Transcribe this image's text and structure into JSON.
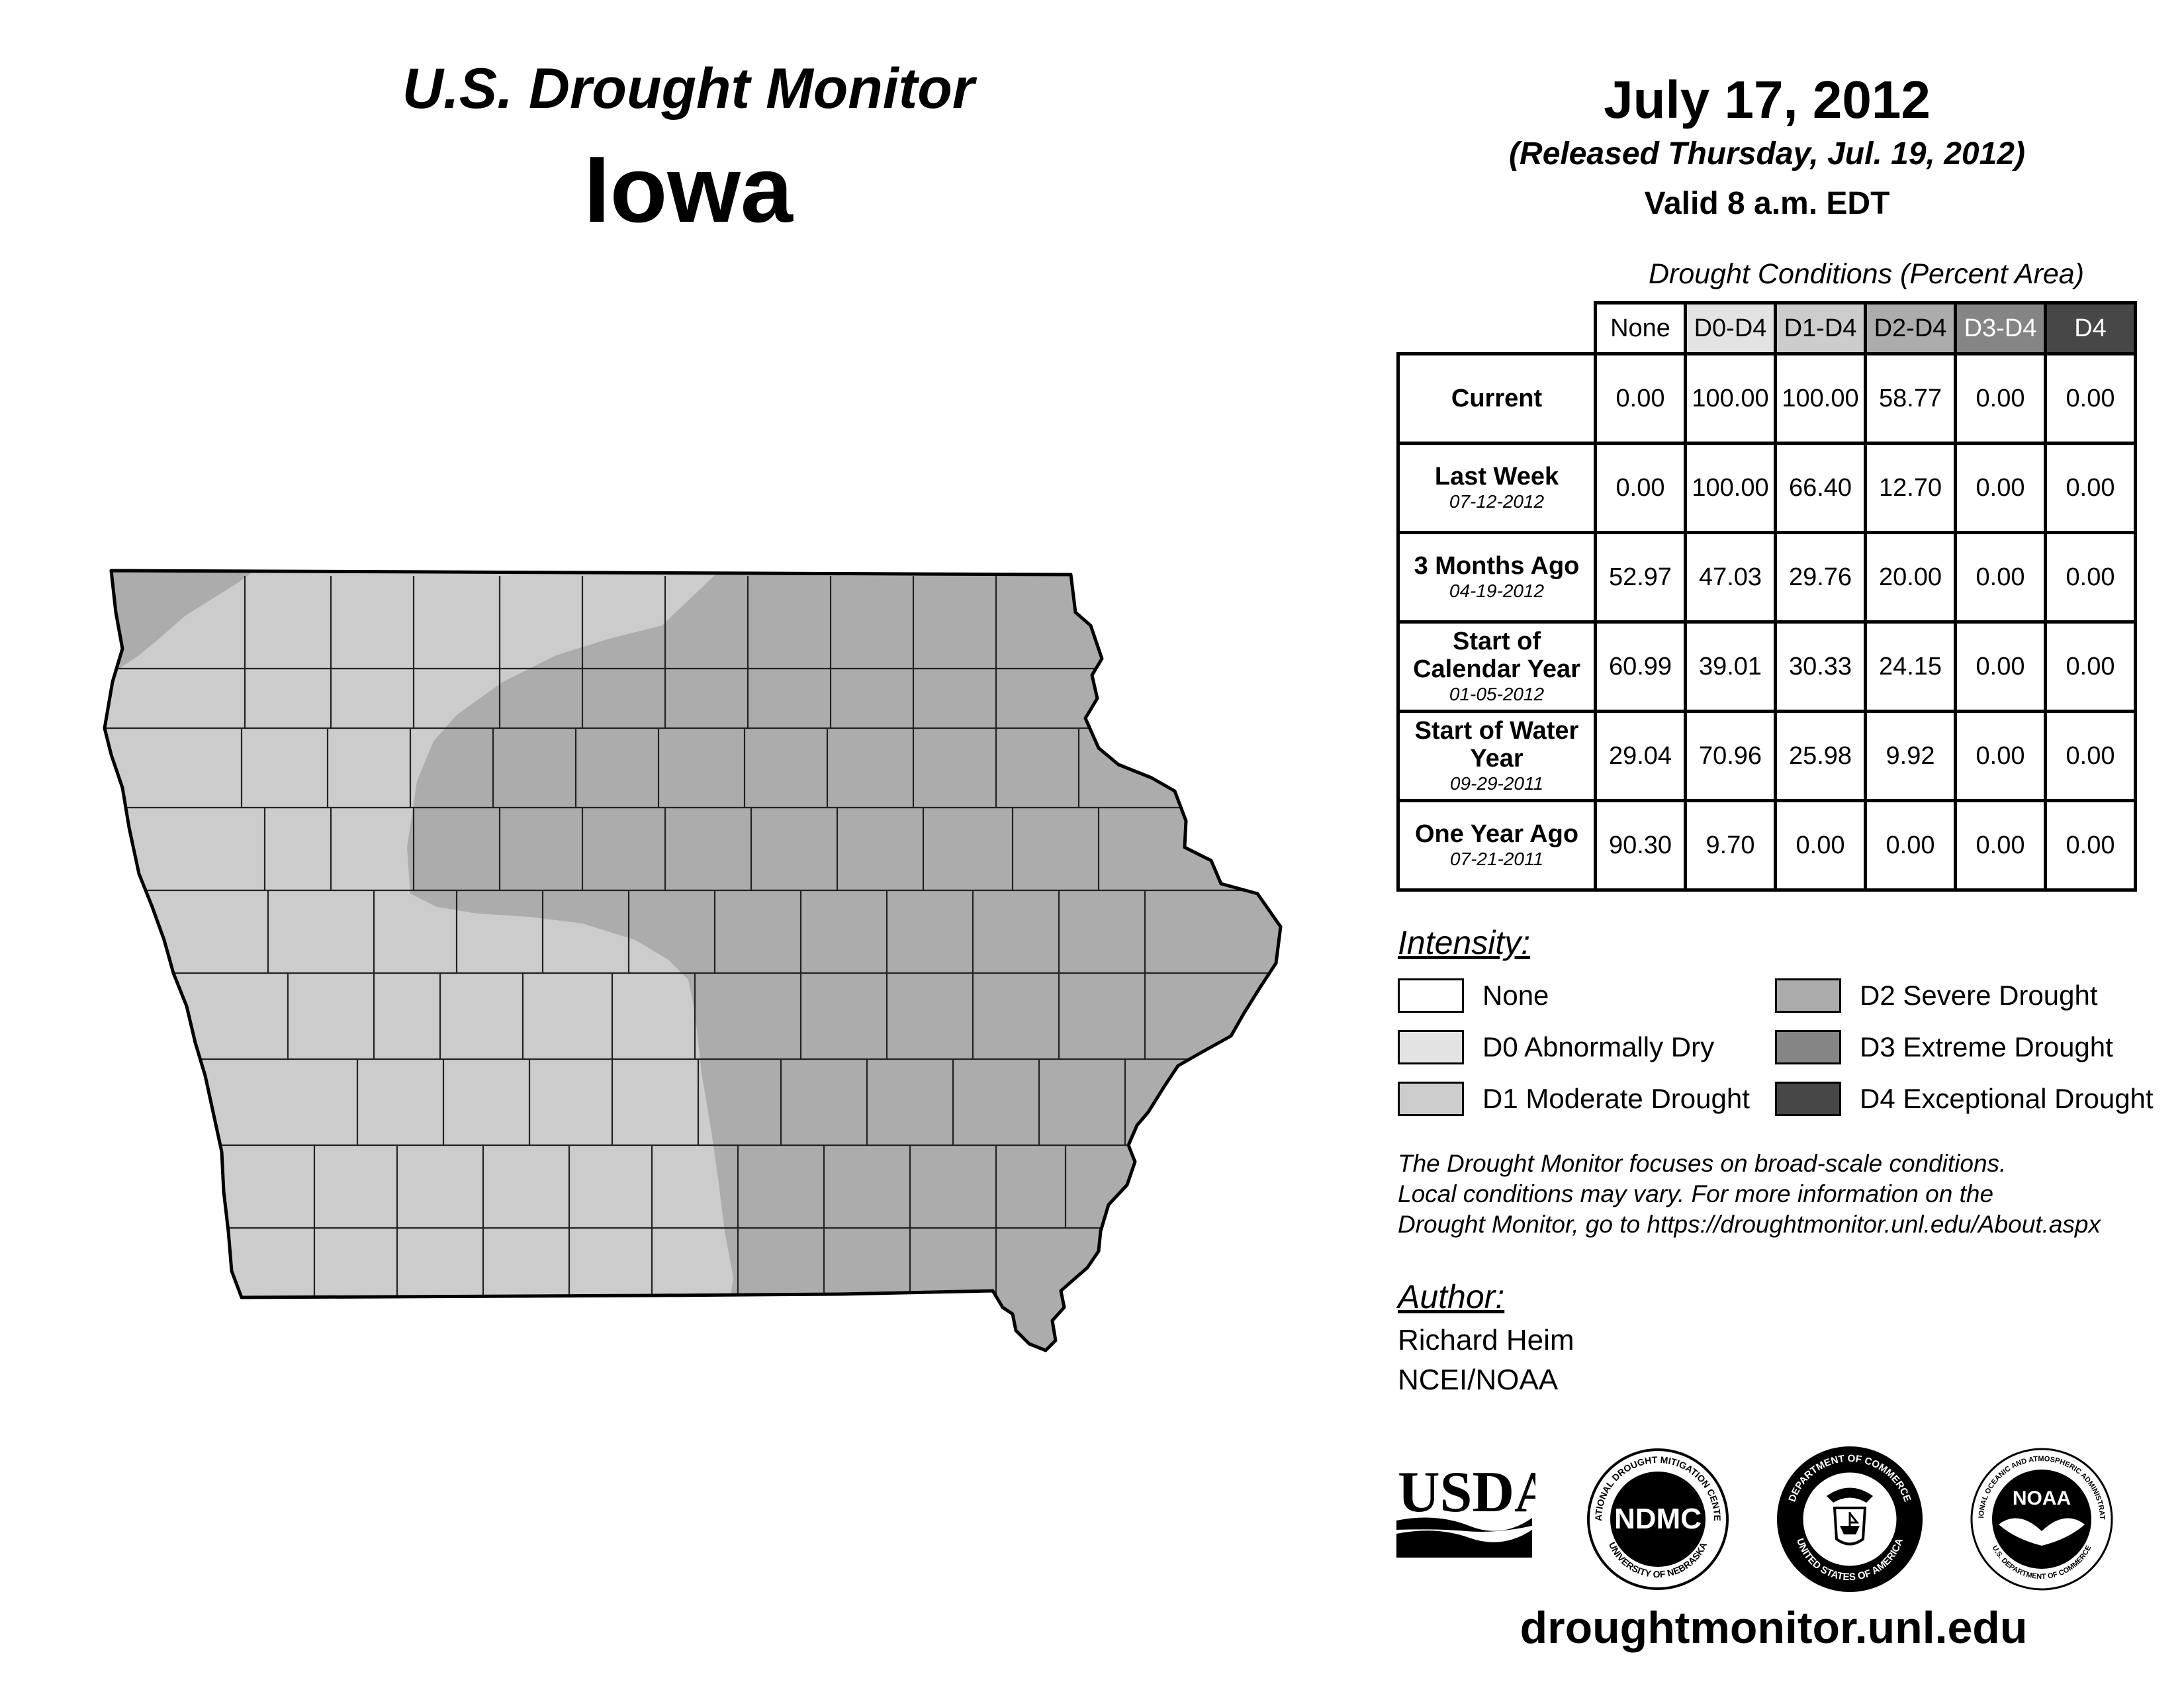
{
  "header": {
    "title": "U.S. Drought Monitor",
    "state": "Iowa",
    "date": "July 17, 2012",
    "released": "(Released Thursday, Jul. 19, 2012)",
    "valid": "Valid 8 a.m. EDT"
  },
  "table": {
    "caption": "Drought Conditions (Percent Area)",
    "columns": [
      {
        "label": "None",
        "bg": "#ffffff",
        "fg": "#000000"
      },
      {
        "label": "D0-D4",
        "bg": "#e3e3e3",
        "fg": "#000000"
      },
      {
        "label": "D1-D4",
        "bg": "#cccccc",
        "fg": "#000000"
      },
      {
        "label": "D2-D4",
        "bg": "#acacac",
        "fg": "#000000"
      },
      {
        "label": "D3-D4",
        "bg": "#858585",
        "fg": "#ffffff"
      },
      {
        "label": "D4",
        "bg": "#474747",
        "fg": "#ffffff"
      }
    ],
    "rows": [
      {
        "label": "Current",
        "date": "",
        "values": [
          "0.00",
          "100.00",
          "100.00",
          "58.77",
          "0.00",
          "0.00"
        ]
      },
      {
        "label": "Last Week",
        "date": "07-12-2012",
        "values": [
          "0.00",
          "100.00",
          "66.40",
          "12.70",
          "0.00",
          "0.00"
        ]
      },
      {
        "label": "3 Months Ago",
        "date": "04-19-2012",
        "values": [
          "52.97",
          "47.03",
          "29.76",
          "20.00",
          "0.00",
          "0.00"
        ]
      },
      {
        "label": "Start of Calendar Year",
        "date": "01-05-2012",
        "values": [
          "60.99",
          "39.01",
          "30.33",
          "24.15",
          "0.00",
          "0.00"
        ]
      },
      {
        "label": "Start of Water Year",
        "date": "09-29-2011",
        "values": [
          "29.04",
          "70.96",
          "25.98",
          "9.92",
          "0.00",
          "0.00"
        ]
      },
      {
        "label": "One Year Ago",
        "date": "07-21-2011",
        "values": [
          "90.30",
          "9.70",
          "0.00",
          "0.00",
          "0.00",
          "0.00"
        ]
      }
    ]
  },
  "intensity": {
    "heading": "Intensity:",
    "items": [
      {
        "label": "None",
        "color": "#ffffff"
      },
      {
        "label": "D0 Abnormally Dry",
        "color": "#e3e3e3"
      },
      {
        "label": "D1 Moderate Drought",
        "color": "#cccccc"
      },
      {
        "label": "D2 Severe Drought",
        "color": "#acacac"
      },
      {
        "label": "D3 Extreme Drought",
        "color": "#858585"
      },
      {
        "label": "D4 Exceptional Drought",
        "color": "#474747"
      }
    ]
  },
  "note": {
    "lines": [
      "The Drought Monitor focuses on broad-scale conditions.",
      "Local conditions may vary. For more information on the",
      "Drought Monitor, go to https://droughtmonitor.unl.edu/About.aspx"
    ]
  },
  "author": {
    "heading": "Author:",
    "name": "Richard Heim",
    "org": "NCEI/NOAA"
  },
  "logos": {
    "usda": "USDA",
    "ndmc": "NDMC",
    "ndmc_top": "NATIONAL DROUGHT MITIGATION CENTER",
    "ndmc_bottom": "UNIVERSITY OF NEBRASKA",
    "doc_top": "DEPARTMENT OF COMMERCE",
    "doc_bottom": "UNITED STATES OF AMERICA",
    "noaa": "NOAA",
    "noaa_top": "NATIONAL OCEANIC AND ATMOSPHERIC ADMINISTRATION",
    "noaa_bottom": "U.S. DEPARTMENT OF COMMERCE"
  },
  "footer": {
    "website": "droughtmonitor.unl.edu"
  },
  "map": {
    "d1_color": "#cccccc",
    "d2_color": "#acacac",
    "outline_color": "#000000",
    "county_line_color": "#222222"
  }
}
